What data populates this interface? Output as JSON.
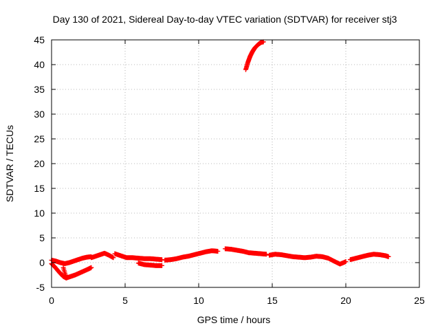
{
  "chart_data": {
    "type": "scatter",
    "title": "Day 130 of 2021, Sidereal Day-to-day VTEC variation (SDTVAR) for receiver stj3",
    "xlabel": "GPS time / hours",
    "ylabel": "SDTVAR / TECUs",
    "xlim": [
      0,
      25
    ],
    "ylim": [
      -5,
      45
    ],
    "xticks": [
      0,
      5,
      10,
      15,
      20,
      25
    ],
    "yticks": [
      -5,
      0,
      5,
      10,
      15,
      20,
      25,
      30,
      35,
      40,
      45
    ],
    "grid": true,
    "marker": "+",
    "color": "#ff0000",
    "series": [
      {
        "name": "stj3",
        "segments": [
          {
            "x": [
              0.0,
              0.3,
              0.6,
              0.9,
              1.2,
              1.5,
              1.8,
              2.1,
              2.4,
              2.7
            ],
            "y": [
              0.5,
              0.3,
              0.0,
              -0.2,
              0.0,
              0.3,
              0.6,
              0.9,
              1.1,
              1.2
            ]
          },
          {
            "x": [
              0.0,
              0.2,
              0.4,
              0.6,
              0.8,
              1.0
            ],
            "y": [
              -0.2,
              -0.8,
              -1.5,
              -2.2,
              -2.8,
              -3.1
            ]
          },
          {
            "x": [
              0.8,
              1.0,
              1.3,
              1.6,
              1.9,
              2.2,
              2.5,
              2.7
            ],
            "y": [
              -1.0,
              -3.1,
              -2.8,
              -2.5,
              -2.1,
              -1.7,
              -1.3,
              -1.0
            ]
          },
          {
            "x": [
              2.7,
              3.0,
              3.3,
              3.6,
              3.9,
              4.2
            ],
            "y": [
              1.0,
              1.3,
              1.6,
              1.9,
              1.5,
              1.0
            ]
          },
          {
            "x": [
              4.3,
              4.7,
              5.1,
              5.5,
              5.9,
              6.3,
              6.7,
              7.1,
              7.5
            ],
            "y": [
              1.8,
              1.4,
              1.0,
              1.0,
              0.9,
              0.8,
              0.8,
              0.7,
              0.6
            ]
          },
          {
            "x": [
              5.9,
              6.3,
              6.7,
              7.1,
              7.5
            ],
            "y": [
              -0.1,
              -0.4,
              -0.5,
              -0.6,
              -0.6
            ]
          },
          {
            "x": [
              7.7,
              8.1,
              8.5,
              8.9,
              9.3,
              9.7,
              10.1,
              10.5,
              10.9,
              11.3
            ],
            "y": [
              0.5,
              0.6,
              0.8,
              1.1,
              1.3,
              1.6,
              1.9,
              2.2,
              2.4,
              2.3
            ]
          },
          {
            "x": [
              11.8,
              12.2,
              12.6,
              13.0,
              13.4,
              13.8,
              14.2,
              14.6
            ],
            "y": [
              2.8,
              2.7,
              2.5,
              2.3,
              2.0,
              1.9,
              1.8,
              1.7
            ]
          },
          {
            "x": [
              13.2,
              13.35,
              13.5,
              13.65,
              13.8,
              13.95,
              14.1,
              14.25,
              14.4
            ],
            "y": [
              39.0,
              40.5,
              41.7,
              42.6,
              43.3,
              43.8,
              44.2,
              44.5,
              44.6
            ]
          },
          {
            "x": [
              14.8,
              15.2,
              15.6,
              16.0,
              16.4,
              16.8,
              17.2,
              17.6,
              18.0,
              18.4,
              18.8,
              19.2,
              19.6,
              20.0
            ],
            "y": [
              1.5,
              1.7,
              1.6,
              1.4,
              1.2,
              1.1,
              1.0,
              1.1,
              1.3,
              1.2,
              0.9,
              0.3,
              -0.3,
              0.2
            ]
          },
          {
            "x": [
              20.3,
              20.7,
              21.1,
              21.5,
              21.9,
              22.3,
              22.7,
              22.9
            ],
            "y": [
              0.6,
              0.9,
              1.2,
              1.5,
              1.7,
              1.6,
              1.4,
              1.2
            ]
          }
        ]
      }
    ]
  }
}
